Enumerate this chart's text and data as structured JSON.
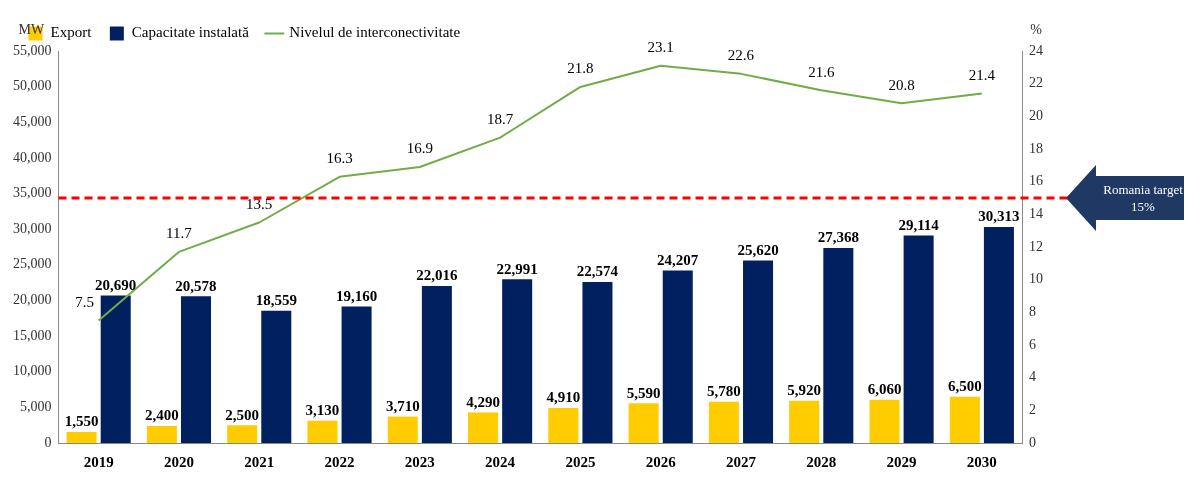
{
  "chart_data": {
    "type": "bar",
    "ylabel": "MW",
    "y2label": "%",
    "categories": [
      "2019",
      "2020",
      "2021",
      "2022",
      "2023",
      "2024",
      "2025",
      "2026",
      "2027",
      "2028",
      "2029",
      "2030"
    ],
    "series": [
      {
        "name": "Export",
        "color": "#ffcc00",
        "values": [
          1550,
          2400,
          2500,
          3130,
          3710,
          4290,
          4910,
          5590,
          5780,
          5920,
          6060,
          6500
        ],
        "value_labels": [
          "1,550",
          "2,400",
          "2,500",
          "3,130",
          "3,710",
          "4,290",
          "4,910",
          "5,590",
          "5,780",
          "5,920",
          "6,060",
          "6,500"
        ]
      },
      {
        "name": "Capacitate instalată",
        "color": "#002060",
        "values": [
          20690,
          20578,
          18559,
          19160,
          22016,
          22991,
          22574,
          24207,
          25620,
          27368,
          29114,
          30313
        ],
        "value_labels": [
          "20,690",
          "20,578",
          "18,559",
          "19,160",
          "22,016",
          "22,991",
          "22,574",
          "24,207",
          "25,620",
          "27,368",
          "29,114",
          "30,313"
        ]
      },
      {
        "name": "Nivelul de interconectivitate",
        "type": "line",
        "axis": "y2",
        "color": "#70ad47",
        "values": [
          7.5,
          11.7,
          13.5,
          16.3,
          16.9,
          18.7,
          21.8,
          23.1,
          22.6,
          21.6,
          20.8,
          21.4
        ],
        "value_labels": [
          "7.5",
          "11.7",
          "13.5",
          "16.3",
          "16.9",
          "18.7",
          "21.8",
          "23.1",
          "22.6",
          "21.6",
          "20.8",
          "21.4"
        ]
      }
    ],
    "ylim": [
      0,
      55000
    ],
    "yticks": [
      0,
      {
        "value": 5000,
        "label": "5,000"
      },
      {
        "value": 10000,
        "label": "10,000"
      },
      {
        "value": 15000,
        "label": "15,000"
      },
      {
        "value": 20000,
        "label": "20,000"
      },
      {
        "value": 25000,
        "label": "25,000"
      },
      {
        "value": 30000,
        "label": "30,000"
      },
      {
        "value": 35000,
        "label": "35,000"
      },
      {
        "value": 40000,
        "label": "40,000"
      },
      {
        "value": 45000,
        "label": "45,000"
      },
      {
        "value": 50000,
        "label": "50,000"
      },
      {
        "value": 55000,
        "label": "55,000"
      }
    ],
    "y2lim": [
      0,
      24
    ],
    "y2ticks": [
      0,
      2,
      4,
      6,
      8,
      10,
      12,
      14,
      16,
      18,
      20,
      22,
      24
    ],
    "ref_lines": [
      {
        "axis": "y2",
        "value": 15,
        "label": "Romania target 15%",
        "color": "#ff0000",
        "line_style": "dashed"
      }
    ],
    "legend": "top left",
    "marker": "none",
    "line_style": "solid"
  }
}
